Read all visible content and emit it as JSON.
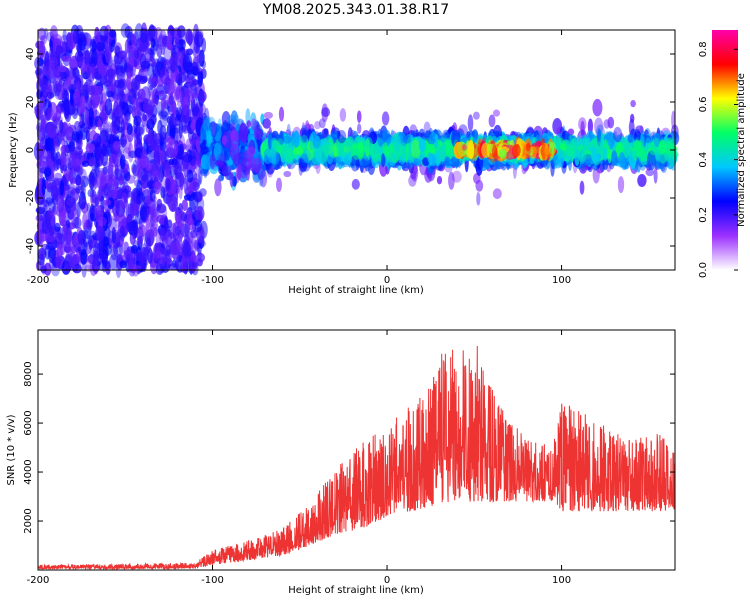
{
  "title": "YM08.2025.343.01.38.R17",
  "chart_data": [
    {
      "type": "heatmap",
      "title": "YM08.2025.343.01.38.R17",
      "xlabel": "Height of straight line (km)",
      "ylabel": "Frequency (Hz)",
      "xlim": [
        -200,
        165
      ],
      "ylim": [
        -50,
        50
      ],
      "xticks": [
        -200,
        -100,
        0,
        100
      ],
      "xtick_labels": [
        "-200",
        "-100",
        "0",
        "100"
      ],
      "yticks": [
        -40,
        -20,
        0,
        20,
        40
      ],
      "ytick_labels": [
        "-40",
        "-20",
        "0",
        "20",
        "40"
      ],
      "colorbar": {
        "label": "Normalized spectral amplitude",
        "range": [
          0,
          0.87
        ],
        "ticks": [
          0.0,
          0.2,
          0.4,
          0.6,
          0.8
        ],
        "tick_labels": [
          "0.0",
          "0.2",
          "0.4",
          "0.6",
          "0.8"
        ],
        "colormap": [
          "#ffffff",
          "#9b30ff",
          "#0000ff",
          "#00c8ff",
          "#00ff66",
          "#ffff00",
          "#ff0000",
          "#ff00aa"
        ]
      },
      "regions": [
        {
          "name": "noise",
          "x_range": [
            -200,
            -105
          ],
          "freq_spread": 50,
          "amplitude": 0.05
        },
        {
          "name": "transition",
          "x_range": [
            -105,
            -70
          ],
          "freq_center": 0,
          "freq_width": 10,
          "amplitude": 0.15
        },
        {
          "name": "signal",
          "x_range": [
            -70,
            165
          ],
          "freq_center": 0,
          "freq_width": 8,
          "amplitude": 0.3
        },
        {
          "name": "peak",
          "x_range": [
            40,
            95
          ],
          "freq_center": 0,
          "freq_width": 2,
          "amplitude": 0.8
        }
      ]
    },
    {
      "type": "line",
      "xlabel": "Height of straight line (km)",
      "ylabel": "SNR (10 * v/v)",
      "xlim": [
        -200,
        165
      ],
      "ylim": [
        0,
        9800
      ],
      "xticks": [
        -200,
        -100,
        0,
        100
      ],
      "xtick_labels": [
        "-200",
        "-100",
        "0",
        "100"
      ],
      "yticks": [
        2000,
        4000,
        6000,
        8000
      ],
      "ytick_labels": [
        "2000",
        "4000",
        "6000",
        "8000"
      ],
      "color": "#ee3333",
      "envelope": {
        "x": [
          -200,
          -150,
          -110,
          -100,
          -80,
          -60,
          -45,
          -30,
          -10,
          0,
          20,
          30,
          50,
          70,
          90,
          95,
          100,
          120,
          140,
          160,
          165
        ],
        "base": [
          50,
          50,
          50,
          200,
          400,
          600,
          1000,
          1400,
          1800,
          2200,
          2500,
          2700,
          2800,
          2800,
          2800,
          2800,
          2400,
          2400,
          2400,
          2400,
          2400
        ],
        "top": [
          200,
          250,
          300,
          800,
          1200,
          1700,
          2700,
          4100,
          5500,
          6000,
          7200,
          8800,
          9500,
          6000,
          5200,
          5000,
          7000,
          6200,
          5500,
          5600,
          5000
        ]
      }
    }
  ]
}
